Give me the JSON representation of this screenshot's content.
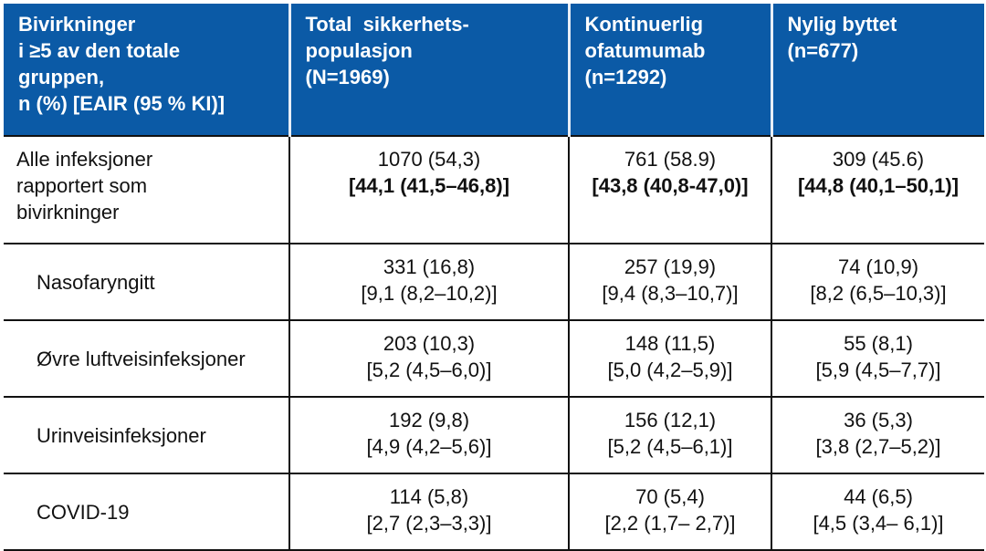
{
  "header": [
    "Bivirkninger\ni ≥5 av den totale gruppen,\nn (%) [EAIR (95 % KI)]",
    "Total  sikkerhets-\npopulasjon\n(N=1969)",
    "Kontinuerlig\nofatumumab\n(n=1292)",
    "Nylig byttet\n(n=677)"
  ],
  "header_lines": [
    [
      "Bivirkninger",
      "i ≥5 av den totale",
      "gruppen,",
      "n (%) [EAIR (95 % KI)]"
    ],
    [
      "Total  sikkerhets-",
      "populasjon",
      "(N=1969)"
    ],
    [
      "Kontinuerlig",
      "ofatumumab",
      "(n=1292)"
    ],
    [
      "Nylig byttet",
      "(n=677)"
    ]
  ],
  "rows": [
    {
      "label": "Alle infeksjoner rapportert som bivirkninger",
      "bold": true,
      "cells": [
        {
          "n": "1070 (54,3)",
          "ci": "[44,1 (41,5–46,8)]"
        },
        {
          "n": "761 (58.9)",
          "ci": "[43,8 (40,8-47,0)]"
        },
        {
          "n": "309 (45.6)",
          "ci": "[44,8 (40,1–50,1)]"
        }
      ]
    },
    {
      "label": "Nasofaryngitt",
      "bold": false,
      "cells": [
        {
          "n": "331 (16,8)",
          "ci": "[9,1 (8,2–10,2)]"
        },
        {
          "n": "257 (19,9)",
          "ci": "[9,4 (8,3–10,7)]"
        },
        {
          "n": "74 (10,9)",
          "ci": "[8,2 (6,5–10,3)]"
        }
      ]
    },
    {
      "label": "Øvre luftveisinfeksjoner",
      "bold": false,
      "cells": [
        {
          "n": "203 (10,3)",
          "ci": "[5,2 (4,5–6,0)]"
        },
        {
          "n": "148 (11,5)",
          "ci": "[5,0 (4,2–5,9)]"
        },
        {
          "n": "55 (8,1)",
          "ci": "[5,9 (4,5–7,7)]"
        }
      ]
    },
    {
      "label": "Urinveisinfeksjoner",
      "bold": false,
      "cells": [
        {
          "n": "192 (9,8)",
          "ci": "[4,9 (4,2–5,6)]"
        },
        {
          "n": "156 (12,1)",
          "ci": "[5,2 (4,5–6,1)]"
        },
        {
          "n": "36 (5,3)",
          "ci": "[3,8 (2,7–5,2)]"
        }
      ]
    },
    {
      "label": "COVID-19",
      "bold": false,
      "cells": [
        {
          "n": "114 (5,8)",
          "ci": "[2,7 (2,3–3,3)]"
        },
        {
          "n": "70 (5,4)",
          "ci": "[2,2 (1,7– 2,7)]"
        },
        {
          "n": "44 (6,5)",
          "ci": "[4,5 (3,4– 6,1)]"
        }
      ]
    }
  ]
}
